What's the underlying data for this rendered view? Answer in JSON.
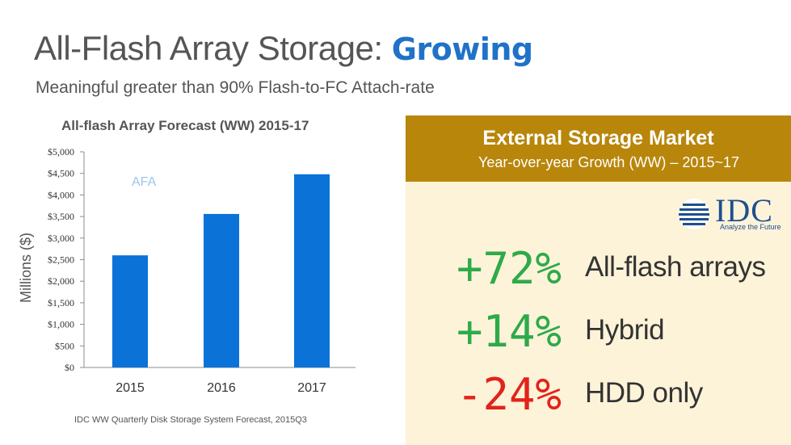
{
  "slide": {
    "title_main": "All-Flash Array Storage:",
    "title_accent": "Growing",
    "subtitle": "Meaningful greater than 90% Flash-to-FC Attach-rate"
  },
  "chart_data": {
    "type": "bar",
    "title": "All-flash Array Forecast (WW) 2015-17",
    "ylabel": "Millions ($)",
    "xlabel": "",
    "categories": [
      "2015",
      "2016",
      "2017"
    ],
    "series": [
      {
        "name": "AFA",
        "values": [
          2600,
          3560,
          4480
        ],
        "color": "#0b72d8"
      }
    ],
    "ylim": [
      0,
      5000
    ],
    "yticks": [
      0,
      500,
      1000,
      1500,
      2000,
      2500,
      3000,
      3500,
      4000,
      4500,
      5000
    ],
    "ytick_labels": [
      "$0",
      "$500",
      "$1,000",
      "$1,500",
      "$2,000",
      "$2,500",
      "$3,000",
      "$3,500",
      "$4,000",
      "$4,500",
      "$5,000"
    ],
    "legend": "top-left",
    "grid": false
  },
  "source_note": "IDC WW Quarterly Disk Storage System Forecast, 2015Q3",
  "market": {
    "title": "External Storage Market",
    "subtitle": "Year-over-year Growth (WW) – 2015~17",
    "logo_text": "IDC",
    "logo_tagline": "Analyze the Future",
    "rows": [
      {
        "value": "+72%",
        "label": "All-flash arrays",
        "color": "#2eaa4a"
      },
      {
        "value": "+14%",
        "label": "Hybrid",
        "color": "#2eaa4a"
      },
      {
        "value": "-24%",
        "label": "HDD only",
        "color": "#e2231a"
      }
    ]
  }
}
